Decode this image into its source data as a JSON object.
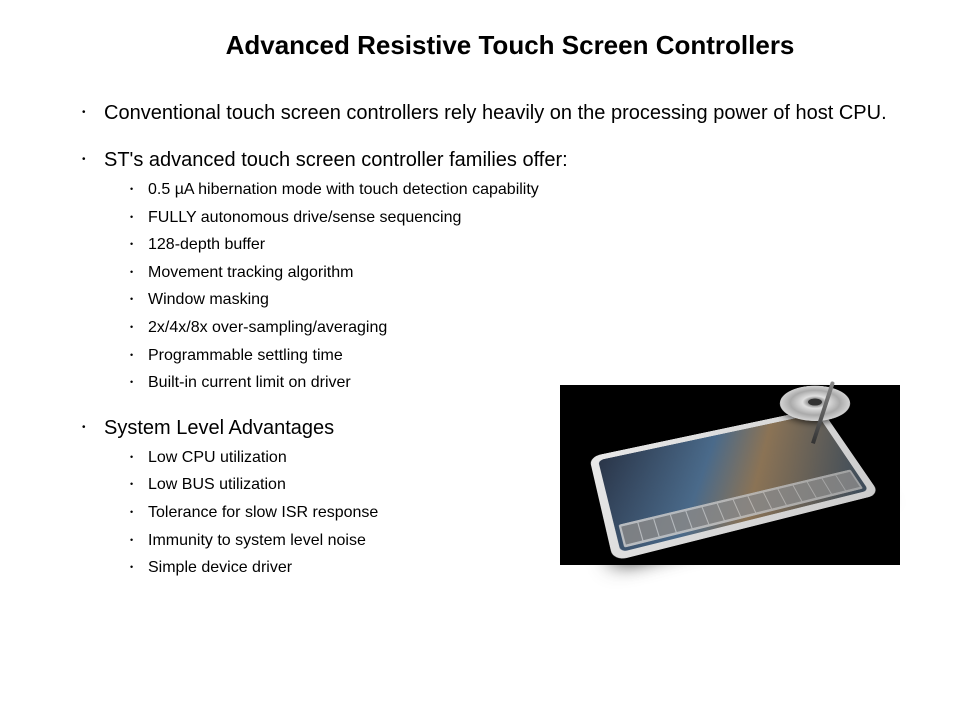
{
  "title": "Advanced Resistive Touch Screen Controllers",
  "bullets": {
    "item1": "Conventional touch screen controllers rely heavily on the processing power of host CPU.",
    "item2": "ST's advanced touch screen controller families offer:",
    "item2_sub": [
      "0.5 µA hibernation mode with touch detection capability",
      "FULLY autonomous drive/sense sequencing",
      "128-depth buffer",
      "Movement tracking algorithm",
      "Window masking",
      "2x/4x/8x over-sampling/averaging",
      "Programmable settling time",
      "Built-in current limit on driver"
    ],
    "item3": "System Level Advantages",
    "item3_sub": [
      "Low CPU utilization",
      "Low BUS utilization",
      "Tolerance for slow ISR response",
      "Immunity to system level noise",
      "Simple device driver"
    ]
  },
  "styling": {
    "background_color": "#ffffff",
    "text_color": "#000000",
    "title_fontsize": 26,
    "body_fontsize": 20,
    "sub_fontsize": 16,
    "font_family": "Arial"
  },
  "illustration": {
    "background": "#000000",
    "tablet_body": "#e0e0e0",
    "tablet_screen_gradient": [
      "#2a3548",
      "#4a6a8a",
      "#8b7355",
      "#3a4a5a"
    ]
  }
}
